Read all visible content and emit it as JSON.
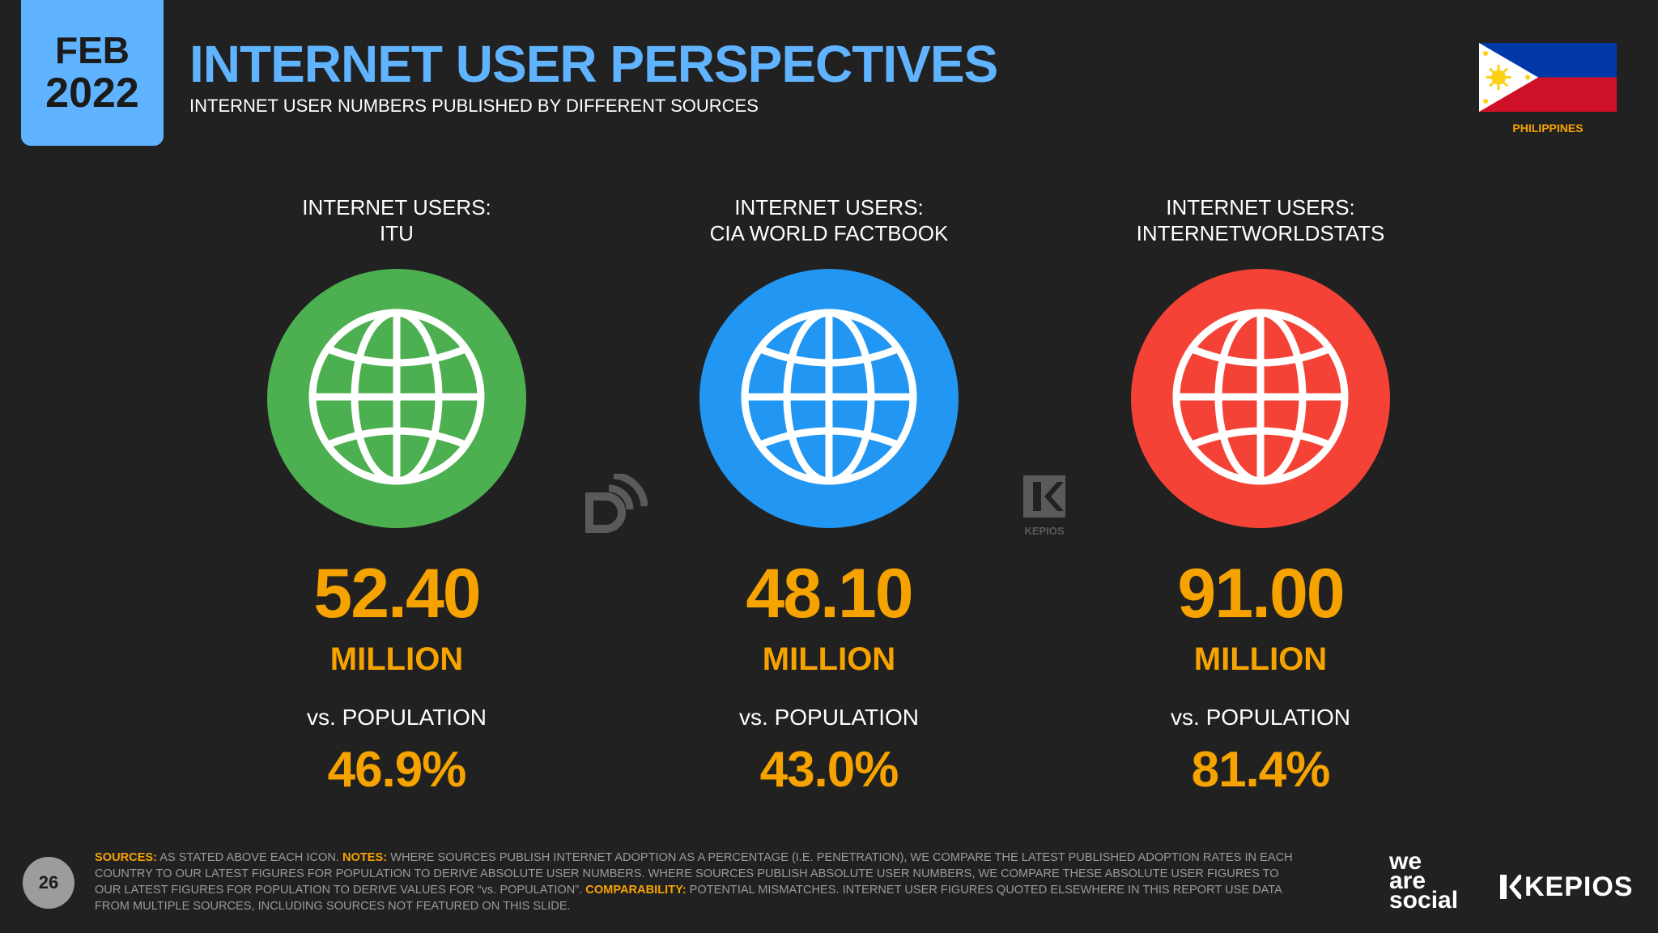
{
  "header": {
    "month": "FEB",
    "year": "2022",
    "title": "INTERNET USER PERSPECTIVES",
    "subtitle": "INTERNET USER NUMBERS PUBLISHED BY DIFFERENT SOURCES",
    "country": "PHILIPPINES"
  },
  "sources": [
    {
      "title": "INTERNET USERS:\nITU",
      "value": "52.40",
      "unit": "MILLION",
      "pop_label": "vs. POPULATION",
      "pop_value": "46.9%",
      "color": "#4caf50",
      "icon": "globe-icon"
    },
    {
      "title": "INTERNET USERS:\nCIA WORLD FACTBOOK",
      "value": "48.10",
      "unit": "MILLION",
      "pop_label": "vs. POPULATION",
      "pop_value": "43.0%",
      "color": "#2196f3",
      "icon": "globe-icon"
    },
    {
      "title": "INTERNET USERS:\nINTERNETWORLDSTATS",
      "value": "91.00",
      "unit": "MILLION",
      "pop_label": "vs. POPULATION",
      "pop_value": "81.4%",
      "color": "#f44336",
      "icon": "globe-icon"
    }
  ],
  "watermarks": {
    "kepios_small": "KEPIOS"
  },
  "footer": {
    "page_number": "26",
    "sources_label": "SOURCES:",
    "sources_text": " AS STATED ABOVE EACH ICON. ",
    "notes_label": "NOTES:",
    "notes_text": " WHERE SOURCES PUBLISH INTERNET ADOPTION AS A PERCENTAGE (I.E. PENETRATION), WE COMPARE THE LATEST PUBLISHED ADOPTION RATES IN EACH COUNTRY TO OUR LATEST FIGURES FOR POPULATION TO DERIVE ABSOLUTE USER NUMBERS. WHERE SOURCES PUBLISH ABSOLUTE USER NUMBERS, WE COMPARE THESE ABSOLUTE USER FIGURES TO OUR LATEST FIGURES FOR POPULATION TO DERIVE VALUES FOR “vs. POPULATION”. ",
    "comparability_label": "COMPARABILITY:",
    "comparability_text": " POTENTIAL MISMATCHES. INTERNET USER FIGURES QUOTED ELSEWHERE IN THIS REPORT USE DATA FROM MULTIPLE SOURCES, INCLUDING SOURCES NOT FEATURED ON THIS SLIDE."
  },
  "logos": {
    "we": "we",
    "are": "are",
    "social": "social",
    "kepios": "KEPIOS"
  },
  "colors": {
    "accent_blue": "#60b3ff",
    "accent_orange": "#f6a300",
    "background": "#212121"
  }
}
